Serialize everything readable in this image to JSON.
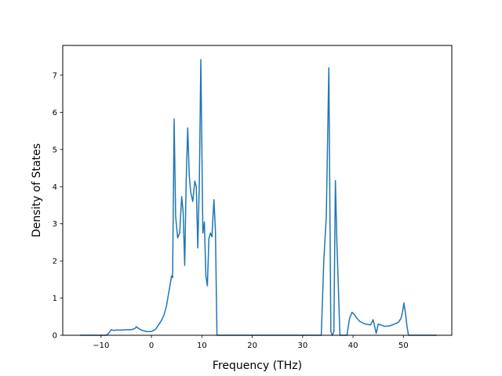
{
  "chart_data": {
    "type": "line",
    "xlabel": "Frequency (THz)",
    "ylabel": "Density of States",
    "xlim": [
      -17.6,
      59.6
    ],
    "ylim": [
      0,
      7.8
    ],
    "grid": false,
    "legend": "none",
    "x_ticks": [
      -10,
      0,
      10,
      20,
      30,
      40,
      50
    ],
    "y_ticks": [
      0,
      1,
      2,
      3,
      4,
      5,
      6,
      7
    ],
    "line_color": "#1f77b4",
    "series": [
      {
        "x": [
          -14.2,
          -9.0,
          -8.5,
          -8.0,
          -7.5,
          -7.0,
          -6.0,
          -5.0,
          -4.0,
          -3.3,
          -3.0,
          -2.5,
          -2.0,
          -1.5,
          -1.0,
          0.0,
          0.8,
          1.5,
          2.0,
          2.5,
          3.0,
          3.5,
          4.0,
          4.2,
          4.5,
          4.8,
          5.2,
          5.6,
          6.0,
          6.3,
          6.6,
          6.9,
          7.2,
          7.5,
          7.8,
          8.2,
          8.6,
          8.9,
          9.2,
          9.5,
          9.8,
          10.2,
          10.5,
          10.8,
          11.1,
          11.4,
          11.7,
          12.0,
          12.4,
          12.7,
          13.0,
          13.3,
          13.7,
          14.0,
          33.7,
          34.2,
          34.7,
          35.2,
          35.6,
          35.9,
          36.2,
          36.5,
          36.8,
          37.4,
          37.8,
          38.3,
          38.8,
          39.3,
          39.8,
          40.3,
          40.8,
          41.3,
          41.8,
          42.5,
          43.5,
          44.0,
          44.6,
          45.0,
          45.5,
          46.2,
          47.2,
          48.2,
          49.0,
          49.5,
          49.8,
          50.1,
          50.4,
          50.7,
          51.0,
          56.6
        ],
        "y": [
          0,
          0,
          0.05,
          0.15,
          0.13,
          0.14,
          0.14,
          0.15,
          0.15,
          0.18,
          0.23,
          0.18,
          0.14,
          0.12,
          0.1,
          0.1,
          0.16,
          0.3,
          0.4,
          0.55,
          0.8,
          1.2,
          1.6,
          1.55,
          5.82,
          3.2,
          2.62,
          2.75,
          3.73,
          3.3,
          1.88,
          4.2,
          5.58,
          4.3,
          3.85,
          3.6,
          4.15,
          4.0,
          2.35,
          4.1,
          7.42,
          2.75,
          3.05,
          1.6,
          1.33,
          2.6,
          2.75,
          2.65,
          3.65,
          2.8,
          0,
          0,
          0,
          0,
          0,
          2.0,
          3.2,
          7.2,
          0.1,
          0,
          0.1,
          4.16,
          2.5,
          0,
          0,
          0,
          0,
          0.45,
          0.62,
          0.55,
          0.45,
          0.38,
          0.34,
          0.3,
          0.28,
          0.42,
          0.05,
          0.3,
          0.28,
          0.24,
          0.25,
          0.3,
          0.35,
          0.45,
          0.6,
          0.87,
          0.6,
          0.25,
          0,
          0
        ]
      }
    ]
  }
}
